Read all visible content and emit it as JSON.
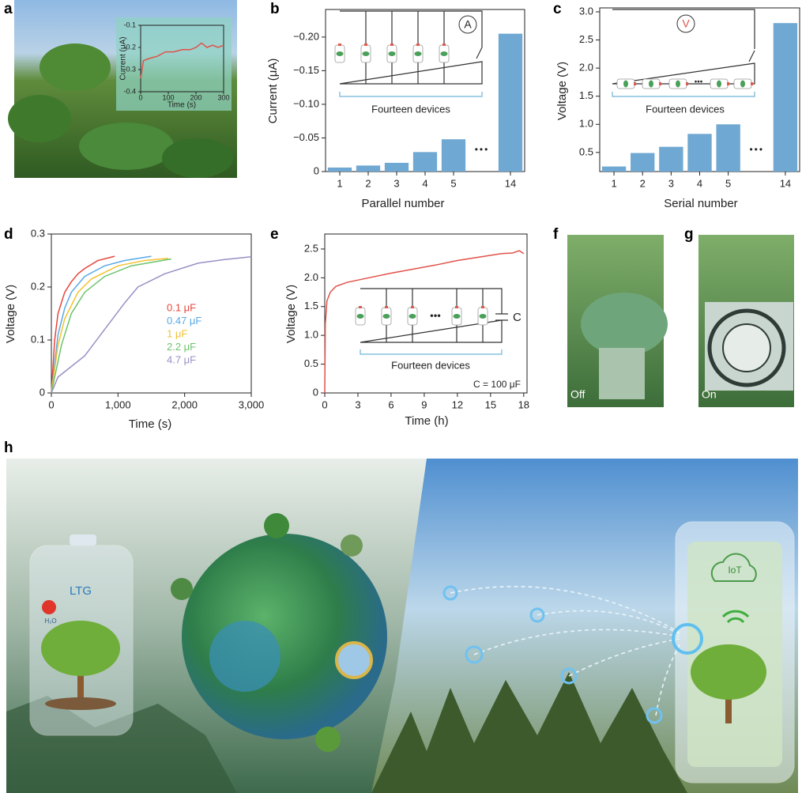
{
  "panel_labels": [
    "a",
    "b",
    "c",
    "d",
    "e",
    "f",
    "g",
    "h"
  ],
  "chart_data": [
    {
      "type": "line",
      "xlabel": "Time (s)",
      "ylabel": "Current (μA)",
      "xlim": [
        0,
        300
      ],
      "xticks": [
        0,
        100,
        200,
        300
      ],
      "ylim": [
        -0.4,
        -0.1
      ],
      "yticks": [
        -0.1,
        -0.2,
        -0.3,
        -0.4
      ],
      "x": [
        0,
        5,
        10,
        30,
        60,
        90,
        120,
        150,
        180,
        200,
        220,
        240,
        260,
        280,
        300
      ],
      "series": [
        {
          "color": "#e0524a",
          "values": [
            -0.34,
            -0.3,
            -0.26,
            -0.25,
            -0.24,
            -0.22,
            -0.22,
            -0.21,
            -0.21,
            -0.2,
            -0.18,
            -0.2,
            -0.19,
            -0.2,
            -0.19
          ]
        }
      ]
    },
    {
      "type": "bar",
      "xlabel": "Parallel number",
      "ylabel": "Current (μA)",
      "categories": [
        "1",
        "2",
        "3",
        "4",
        "5",
        null,
        "14"
      ],
      "values": [
        -0.006,
        -0.009,
        -0.013,
        -0.029,
        -0.048,
        null,
        -0.205
      ],
      "color": "#6fa8d2",
      "ylim": [
        0,
        -0.241
      ],
      "yticks": [
        0,
        {
          "value": -0.05,
          "label": "−0.05"
        },
        {
          "value": -0.1,
          "label": "−0.10"
        },
        {
          "value": -0.15,
          "label": "−0.15"
        },
        {
          "value": -0.2,
          "label": "−0.20"
        }
      ],
      "gap_label": "•••",
      "inset": {
        "meter": "A",
        "caption": "Fourteen devices"
      }
    },
    {
      "type": "bar",
      "xlabel": "Serial number",
      "ylabel": "Voltage (V)",
      "categories": [
        "1",
        "2",
        "3",
        "4",
        "5",
        null,
        "14"
      ],
      "values": [
        0.25,
        0.49,
        0.6,
        0.83,
        1.0,
        null,
        2.8
      ],
      "color": "#6fa8d2",
      "ylim": [
        0.16,
        3.07
      ],
      "yticks": [
        0.5,
        {
          "value": 1,
          "label": "1.0"
        },
        1.5,
        {
          "value": 2,
          "label": "2.0"
        },
        2.5,
        {
          "value": 3,
          "label": "3.0"
        }
      ],
      "gap_label": "•••",
      "inset": {
        "meter": "V",
        "caption": "Fourteen devices"
      }
    },
    {
      "type": "line",
      "xlabel": "Time (s)",
      "ylabel": "Voltage (V)",
      "xlim": [
        0,
        3000
      ],
      "xticks": [
        0,
        {
          "value": 1000,
          "label": "1,000"
        },
        {
          "value": 2000,
          "label": "2,000"
        },
        {
          "value": 3000,
          "label": "3,000"
        }
      ],
      "ylim": [
        0,
        0.3
      ],
      "yticks": [
        0,
        0.1,
        0.2,
        0.3
      ],
      "legend": "right",
      "series": [
        {
          "name": "0.1 μF",
          "color": "#e8453c",
          "x": [
            0,
            50,
            100,
            200,
            300,
            400,
            500,
            700,
            950
          ],
          "values": [
            0,
            0.1,
            0.15,
            0.19,
            0.21,
            0.225,
            0.235,
            0.25,
            0.258
          ]
        },
        {
          "name": "0.47 μF",
          "color": "#5aa9e6",
          "x": [
            0,
            100,
            200,
            300,
            500,
            800,
            1100,
            1500
          ],
          "values": [
            0,
            0.11,
            0.16,
            0.19,
            0.22,
            0.24,
            0.25,
            0.258
          ]
        },
        {
          "name": "1 μF",
          "color": "#f2c230",
          "x": [
            0,
            100,
            200,
            400,
            600,
            1000,
            1400,
            1750
          ],
          "values": [
            0,
            0.09,
            0.14,
            0.19,
            0.215,
            0.24,
            0.25,
            0.254
          ]
        },
        {
          "name": "2.2 μF",
          "color": "#6cc36c",
          "x": [
            0,
            150,
            300,
            500,
            800,
            1200,
            1800
          ],
          "values": [
            0,
            0.09,
            0.15,
            0.19,
            0.22,
            0.24,
            0.253
          ]
        },
        {
          "name": "4.7 μF",
          "color": "#9a8fc4",
          "x": [
            0,
            100,
            300,
            500,
            800,
            1100,
            1300,
            1700,
            2200,
            2600,
            3000
          ],
          "values": [
            0,
            0.03,
            0.05,
            0.07,
            0.12,
            0.17,
            0.2,
            0.225,
            0.245,
            0.252,
            0.257
          ]
        }
      ]
    },
    {
      "type": "line",
      "xlabel": "Time (h)",
      "ylabel": "Voltage (V)",
      "xlim": [
        0,
        18.3
      ],
      "xticks": [
        0,
        3,
        6,
        9,
        12,
        15,
        18
      ],
      "ylim": [
        0,
        2.76
      ],
      "yticks": [
        0,
        0.5,
        {
          "value": 1,
          "label": "1.0"
        },
        1.5,
        {
          "value": 2,
          "label": "2.0"
        },
        2.5
      ],
      "x": [
        0,
        0.05,
        0.2,
        0.5,
        1,
        2,
        4,
        6,
        8,
        10,
        12,
        14,
        16,
        17,
        17.6,
        18
      ],
      "series": [
        {
          "color": "#e0524a",
          "values": [
            0,
            1.2,
            1.6,
            1.75,
            1.85,
            1.92,
            2.0,
            2.08,
            2.15,
            2.22,
            2.3,
            2.36,
            2.42,
            2.43,
            2.47,
            2.42
          ]
        }
      ],
      "annotation": "C = 100 μF",
      "inset": {
        "capacitor": "C",
        "caption": "Fourteen devices",
        "ellipsis": "•••"
      }
    }
  ],
  "photos": [
    {
      "label": "Off"
    },
    {
      "label": "On"
    }
  ],
  "illustration": {
    "battery": "LTG",
    "molecule": "H₂O",
    "cloud": "IoT"
  }
}
